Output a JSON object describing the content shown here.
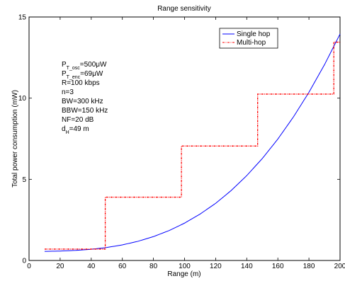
{
  "chart_data": {
    "type": "line",
    "title": "Range sensitivity",
    "xlabel": "Range (m)",
    "ylabel": "Total power consumption (mW)",
    "xlim": [
      0,
      200
    ],
    "ylim": [
      0,
      15
    ],
    "xticks": [
      0,
      20,
      40,
      60,
      80,
      100,
      120,
      140,
      160,
      180,
      200
    ],
    "yticks": [
      0,
      5,
      10,
      15
    ],
    "grid": false,
    "legend_position": "top-right",
    "series": [
      {
        "name": "Single hop",
        "color": "#0000ff",
        "style": "solid",
        "x": [
          10,
          20,
          30,
          40,
          50,
          60,
          70,
          80,
          90,
          100,
          110,
          120,
          130,
          140,
          150,
          160,
          170,
          180,
          190,
          200
        ],
        "y": [
          0.56,
          0.58,
          0.62,
          0.69,
          0.8,
          0.96,
          1.18,
          1.47,
          1.84,
          2.3,
          2.86,
          3.52,
          4.31,
          5.23,
          6.28,
          7.48,
          8.84,
          10.36,
          12.06,
          13.95
        ]
      },
      {
        "name": "Multi-hop",
        "color": "#ff0000",
        "style": "dash-dot",
        "x": [
          10,
          49,
          49.01,
          98,
          98.01,
          147,
          147.01,
          196,
          196.01,
          200
        ],
        "y": [
          0.7,
          0.7,
          3.9,
          3.9,
          7.05,
          7.05,
          10.25,
          10.25,
          13.45,
          13.45
        ]
      }
    ],
    "annotations": [
      {
        "base": "P",
        "sub": "T_osc",
        "rest": "=500μW"
      },
      {
        "base": "P",
        "sub": "T_enc",
        "rest": "=69μW"
      },
      {
        "base": "R=100 kbps",
        "sub": "",
        "rest": ""
      },
      {
        "base": "n=3",
        "sub": "",
        "rest": ""
      },
      {
        "base": "BW=300 kHz",
        "sub": "",
        "rest": ""
      },
      {
        "base": "BBW=150 kHz",
        "sub": "",
        "rest": ""
      },
      {
        "base": "NF=20 dB",
        "sub": "",
        "rest": ""
      },
      {
        "base": "d",
        "sub": "H",
        "rest": "=49 m"
      }
    ]
  }
}
